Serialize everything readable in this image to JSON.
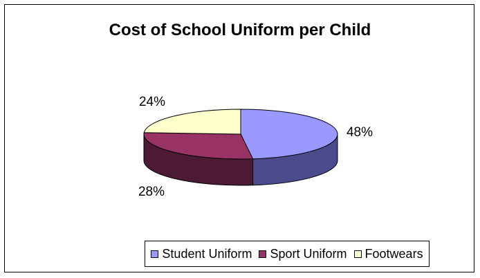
{
  "chart_data": {
    "type": "pie",
    "title": "Cost of School Uniform per Child",
    "categories": [
      "Student Uniform",
      "Sport Uniform",
      "Footwears"
    ],
    "values": [
      48,
      28,
      24
    ],
    "labels": [
      "48%",
      "28%",
      "24%"
    ],
    "colors": [
      "#9999ff",
      "#993366",
      "#ffffcc"
    ],
    "side_colors": [
      "#4b4b8c",
      "#4d1a33",
      "#bcbc96"
    ],
    "legend_position": "bottom",
    "style": "3d-pie"
  }
}
